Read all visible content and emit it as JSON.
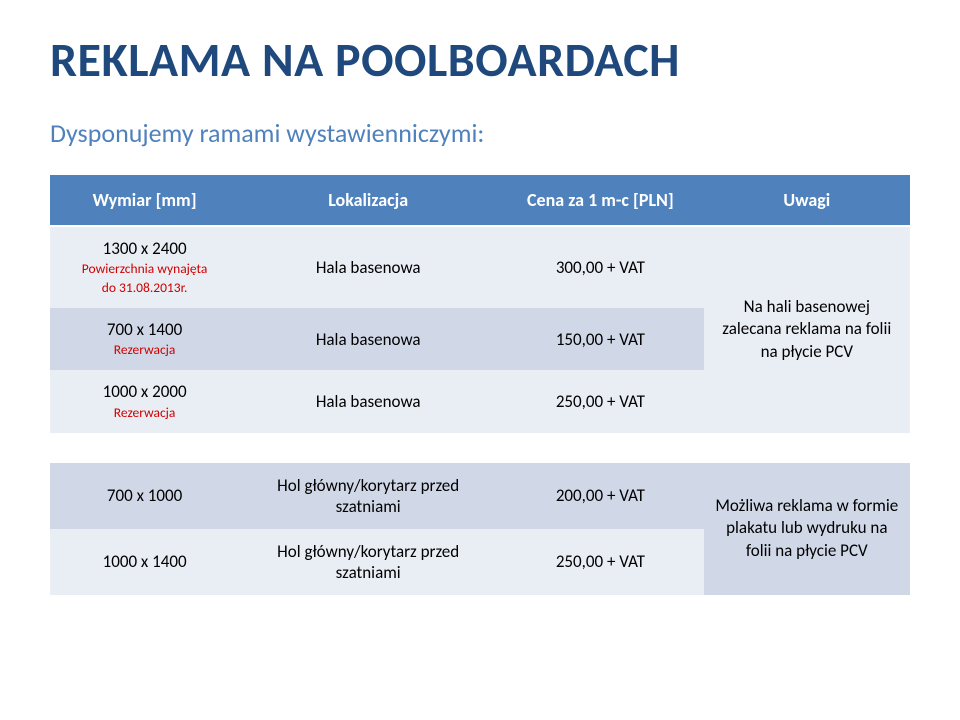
{
  "title": "REKLAMA NA POOLBOARDACH",
  "subtitle": "Dysponujemy ramami wystawienniczymi:",
  "table": {
    "header": {
      "dim": "Wymiar [mm]",
      "loc": "Lokalizacja",
      "price": "Cena za 1 m-c [PLN]",
      "notes": "Uwagi"
    },
    "group1": {
      "notes": "Na hali basenowej zalecana reklama na folii na płycie PCV",
      "rows": [
        {
          "dim": "1300 x 2400",
          "sub1": "Powierzchnia wynajęta",
          "sub2": "do 31.08.2013r.",
          "loc": "Hala basenowa",
          "price": "300,00 + VAT"
        },
        {
          "dim": "700 x 1400",
          "sub1": "Rezerwacja",
          "sub2": "",
          "loc": "Hala basenowa",
          "price": "150,00 + VAT"
        },
        {
          "dim": "1000 x 2000",
          "sub1": "Rezerwacja",
          "sub2": "",
          "loc": "Hala basenowa",
          "price": "250,00 + VAT"
        }
      ]
    },
    "group2": {
      "notes": "Możliwa reklama w formie plakatu lub wydruku na folii na płycie PCV",
      "rows": [
        {
          "dim": "700 x 1000",
          "loc": "Hol główny/korytarz przed szatniami",
          "price": "200,00 + VAT"
        },
        {
          "dim": "1000 x 1400",
          "loc": "Hol główny/korytarz przed szatniami",
          "price": "250,00 + VAT"
        }
      ]
    }
  },
  "style": {
    "title_color": "#1f497d",
    "subtitle_color": "#4f81bd",
    "header_bg": "#4f81bd",
    "row_a_bg": "#e9edf4",
    "row_b_bg": "#d0d8e8",
    "sub_color": "#d00000"
  }
}
